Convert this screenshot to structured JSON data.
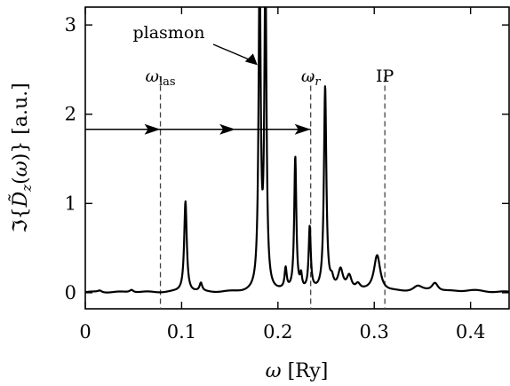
{
  "chart_data": {
    "type": "line",
    "title": "",
    "xlabel": "ω [Ry]",
    "ylabel": "ℑ{D̃z(ω)} [a.u.]",
    "xlim": [
      0,
      0.44
    ],
    "ylim": [
      -0.18,
      3.2
    ],
    "x_ticks": [
      "0",
      "0.1",
      "0.2",
      "0.3",
      "0.4"
    ],
    "x_tick_values": [
      0,
      0.1,
      0.2,
      0.3,
      0.4
    ],
    "y_ticks": [
      "0",
      "1",
      "2",
      "3"
    ],
    "y_tick_values": [
      0,
      1,
      2,
      3
    ],
    "grid": false,
    "series": [
      {
        "peaks": [
          {
            "x": 0.015,
            "height": 0.02,
            "width": 0.0025
          },
          {
            "x": 0.048,
            "height": 0.03,
            "width": 0.0025
          },
          {
            "x": 0.104,
            "height": 1.02,
            "width": 0.0016
          },
          {
            "x": 0.12,
            "height": 0.09,
            "width": 0.0016
          },
          {
            "x": 0.181,
            "height": 3.6,
            "width": 0.0013
          },
          {
            "x": 0.187,
            "height": 3.6,
            "width": 0.0013
          },
          {
            "x": 0.208,
            "height": 0.23,
            "width": 0.0013
          },
          {
            "x": 0.218,
            "height": 1.5,
            "width": 0.0013
          },
          {
            "x": 0.224,
            "height": 0.15,
            "width": 0.0012
          },
          {
            "x": 0.233,
            "height": 0.7,
            "width": 0.0013
          },
          {
            "x": 0.249,
            "height": 2.29,
            "width": 0.0015
          },
          {
            "x": 0.256,
            "height": 0.1,
            "width": 0.002
          },
          {
            "x": 0.265,
            "height": 0.22,
            "width": 0.003
          },
          {
            "x": 0.274,
            "height": 0.16,
            "width": 0.003
          },
          {
            "x": 0.283,
            "height": 0.07,
            "width": 0.003
          },
          {
            "x": 0.303,
            "height": 0.41,
            "width": 0.004
          },
          {
            "x": 0.345,
            "height": 0.06,
            "width": 0.006
          },
          {
            "x": 0.363,
            "height": 0.1,
            "width": 0.004
          },
          {
            "x": 0.4,
            "height": 0.02,
            "width": 0.015
          }
        ]
      }
    ],
    "reference_lines": [
      {
        "x": 0.078,
        "label_main": "ω",
        "label_sub": "las"
      },
      {
        "x": 0.234,
        "label_main": "ω",
        "label_sub": "r"
      },
      {
        "x": 0.311,
        "label_main": "IP",
        "label_sub": ""
      }
    ],
    "arrow": {
      "from_x": 0.0,
      "to_x": 0.234,
      "y": 1.83,
      "mid_marks_x": [
        0.078,
        0.156
      ]
    },
    "annotations": [
      {
        "text": "plasmon",
        "at_x": 0.176,
        "at_y": 2.55
      }
    ]
  }
}
